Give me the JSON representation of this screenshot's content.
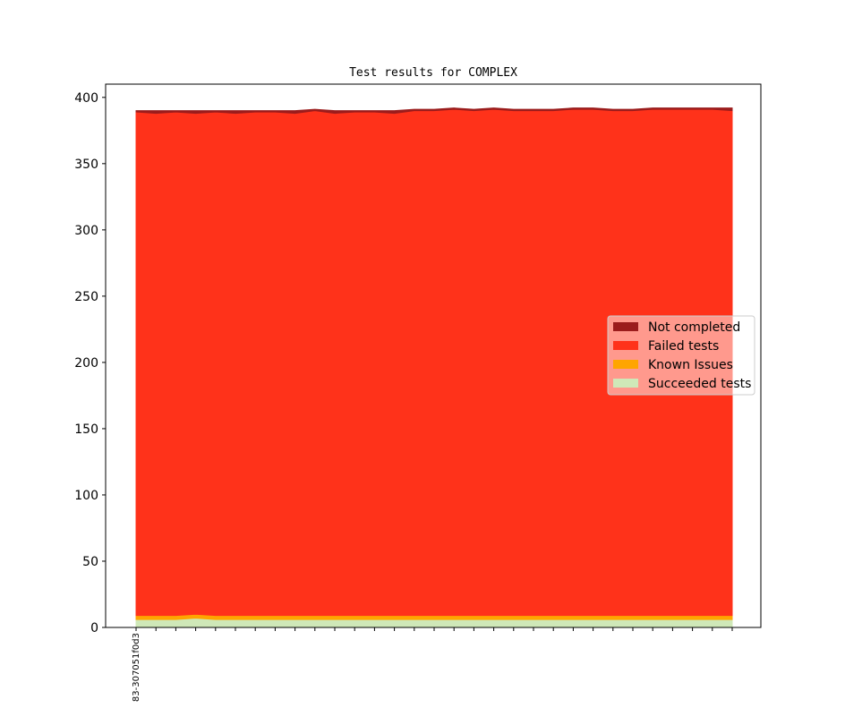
{
  "chart_data": {
    "type": "stacked_area",
    "title": "Test results for COMPLEX",
    "categories": [
      "83-307051f0d3",
      null,
      null,
      null,
      null,
      null,
      null,
      null,
      null,
      null,
      null,
      null,
      null,
      null,
      null,
      null,
      null,
      null,
      null,
      null,
      null,
      null,
      null,
      null,
      null,
      null,
      null,
      null,
      null,
      null,
      null
    ],
    "series": [
      {
        "name": "Succeeded tests",
        "color": "#cfe8b8",
        "values": [
          6,
          6,
          6,
          7,
          6,
          6,
          6,
          6,
          6,
          6,
          6,
          6,
          6,
          6,
          6,
          6,
          6,
          6,
          6,
          6,
          6,
          6,
          6,
          6,
          6,
          6,
          6,
          6,
          6,
          6,
          6
        ]
      },
      {
        "name": "Known Issues",
        "color": "#ffa500",
        "values": [
          3,
          3,
          3,
          3,
          3,
          3,
          3,
          3,
          3,
          3,
          3,
          3,
          3,
          3,
          3,
          3,
          3,
          3,
          3,
          3,
          3,
          3,
          3,
          3,
          3,
          3,
          3,
          3,
          3,
          3,
          3
        ]
      },
      {
        "name": "Failed tests",
        "color": "#ff321a",
        "values": [
          380,
          379,
          380,
          378,
          380,
          379,
          380,
          380,
          379,
          381,
          379,
          380,
          380,
          379,
          381,
          381,
          382,
          381,
          382,
          381,
          381,
          381,
          382,
          382,
          381,
          381,
          382,
          382,
          382,
          382,
          381
        ]
      },
      {
        "name": "Not completed",
        "color": "#9b1c1c",
        "values": [
          1,
          2,
          1,
          2,
          1,
          2,
          1,
          1,
          2,
          1,
          2,
          1,
          1,
          2,
          1,
          1,
          1,
          1,
          1,
          1,
          1,
          1,
          1,
          1,
          1,
          1,
          1,
          1,
          1,
          1,
          2
        ]
      }
    ],
    "ylim": [
      0,
      410
    ],
    "yticks": [
      0,
      50,
      100,
      150,
      200,
      250,
      300,
      350,
      400
    ],
    "legend": "right"
  }
}
